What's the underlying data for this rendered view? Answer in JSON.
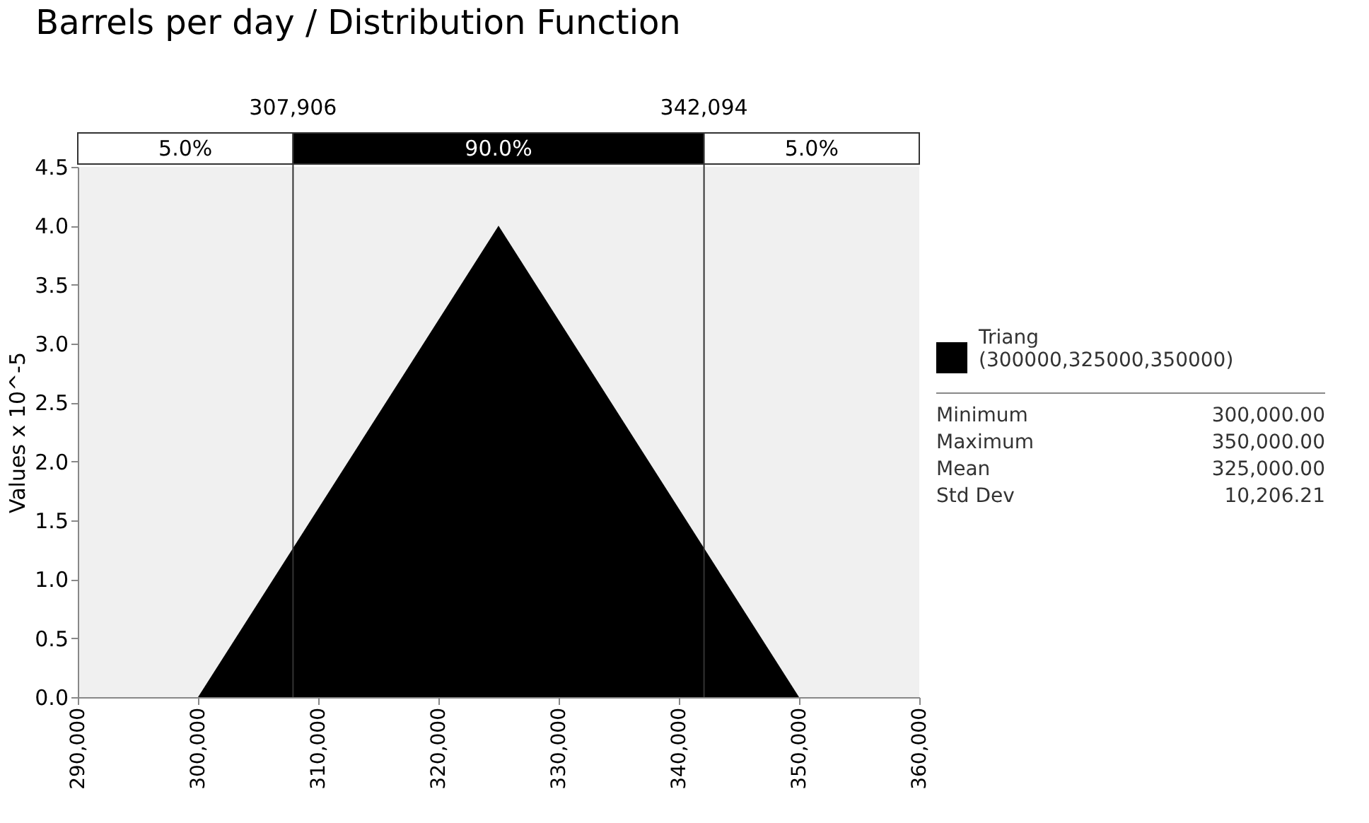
{
  "chart_data": {
    "type": "area",
    "title": "Barrels per day / Distribution Function",
    "ylabel": "Values x 10^-5",
    "x": [
      300000,
      325000,
      350000
    ],
    "series": [
      {
        "name": "Triang\n(300000,325000,350000)",
        "color": "#000000",
        "values": [
          0,
          4.0,
          0
        ]
      }
    ],
    "xlim": [
      290000,
      360000
    ],
    "xticks": [
      {
        "value": 290000,
        "label": "290,000"
      },
      {
        "value": 300000,
        "label": "300,000"
      },
      {
        "value": 310000,
        "label": "310,000"
      },
      {
        "value": 320000,
        "label": "320,000"
      },
      {
        "value": 330000,
        "label": "330,000"
      },
      {
        "value": 340000,
        "label": "340,000"
      },
      {
        "value": 350000,
        "label": "350,000"
      },
      {
        "value": 360000,
        "label": "360,000"
      }
    ],
    "ylim": [
      0,
      4.5
    ],
    "yticks": [
      {
        "value": 0,
        "label": "0.0"
      },
      {
        "value": 0.5,
        "label": "0.5"
      },
      {
        "value": 1,
        "label": "1.0"
      },
      {
        "value": 1.5,
        "label": "1.5"
      },
      {
        "value": 2,
        "label": "2.0"
      },
      {
        "value": 2.5,
        "label": "2.5"
      },
      {
        "value": 3,
        "label": "3.0"
      },
      {
        "value": 3.5,
        "label": "3.5"
      },
      {
        "value": 4,
        "label": "4.0"
      },
      {
        "value": 4.5,
        "label": "4.5"
      }
    ],
    "ref_lines": [
      {
        "axis": "x",
        "value": 307906,
        "label": "307,906"
      },
      {
        "axis": "x",
        "value": 342094,
        "label": "342,094"
      }
    ],
    "annotations": [
      "5.0%",
      "90.0%",
      "5.0%",
      "Minimum",
      "300,000.00",
      "Maximum",
      "350,000.00",
      "Mean",
      "325,000.00",
      "Std Dev",
      "10,206.21"
    ],
    "legend": "right",
    "grid": false
  }
}
